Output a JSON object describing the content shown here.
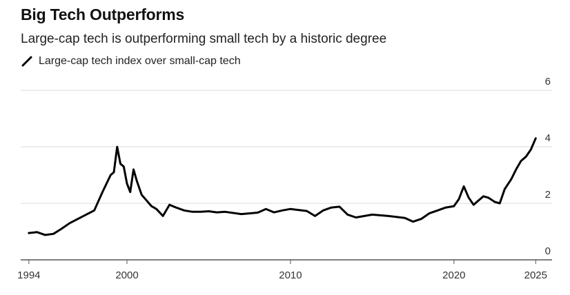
{
  "header": {
    "title": "Big Tech Outperforms",
    "subtitle": "Large-cap tech is outperforming small tech by a historic degree"
  },
  "legend": {
    "label": "Large-cap tech index over small-cap tech"
  },
  "colors": {
    "line": "#000000",
    "grid": "#d9d9d9",
    "axis": "#555555"
  },
  "chart_data": {
    "type": "line",
    "title": "Big Tech Outperforms",
    "subtitle": "Large-cap tech is outperforming small tech by a historic degree",
    "xlabel": "",
    "ylabel": "",
    "xlim": [
      1993.5,
      2026.0
    ],
    "ylim": [
      0,
      6
    ],
    "x_ticks": [
      1994,
      2000,
      2010,
      2020,
      2025
    ],
    "x_tick_labels": [
      "1994",
      "2000",
      "2010",
      "2020",
      "2025"
    ],
    "y_ticks": [
      0,
      2,
      4,
      6
    ],
    "y_tick_labels": [
      "0",
      "2",
      "4",
      "6"
    ],
    "grid": "horizontal",
    "legend_position": "top-left",
    "series": [
      {
        "name": "Large-cap tech index over small-cap tech",
        "x": [
          1994.0,
          1994.5,
          1995.0,
          1995.5,
          1996.0,
          1996.5,
          1997.0,
          1997.5,
          1998.0,
          1998.5,
          1999.0,
          1999.2,
          1999.4,
          1999.6,
          1999.8,
          2000.0,
          2000.2,
          2000.4,
          2000.6,
          2000.9,
          2001.2,
          2001.5,
          2001.8,
          2002.2,
          2002.6,
          2003.0,
          2003.5,
          2004.0,
          2004.5,
          2005.0,
          2005.5,
          2006.0,
          2007.0,
          2008.0,
          2008.5,
          2009.0,
          2009.5,
          2010.0,
          2011.0,
          2011.5,
          2012.0,
          2012.5,
          2013.0,
          2013.5,
          2014.0,
          2015.0,
          2016.0,
          2017.0,
          2017.5,
          2018.0,
          2018.5,
          2019.0,
          2019.5,
          2020.0,
          2020.3,
          2020.6,
          2020.9,
          2021.2,
          2021.5,
          2021.8,
          2022.1,
          2022.5,
          2022.8,
          2023.1,
          2023.5,
          2023.8,
          2024.1,
          2024.4,
          2024.7,
          2025.0
        ],
        "values": [
          0.95,
          0.98,
          0.88,
          0.92,
          1.1,
          1.3,
          1.45,
          1.6,
          1.75,
          2.4,
          3.0,
          3.1,
          4.0,
          3.4,
          3.3,
          2.7,
          2.4,
          3.2,
          2.8,
          2.3,
          2.1,
          1.9,
          1.8,
          1.55,
          1.95,
          1.85,
          1.75,
          1.7,
          1.7,
          1.72,
          1.68,
          1.7,
          1.62,
          1.67,
          1.8,
          1.68,
          1.75,
          1.8,
          1.73,
          1.55,
          1.75,
          1.85,
          1.88,
          1.6,
          1.5,
          1.6,
          1.55,
          1.48,
          1.35,
          1.45,
          1.65,
          1.75,
          1.85,
          1.9,
          2.15,
          2.6,
          2.2,
          1.95,
          2.1,
          2.25,
          2.2,
          2.05,
          2.0,
          2.5,
          2.85,
          3.2,
          3.5,
          3.65,
          3.9,
          4.3
        ]
      }
    ]
  }
}
